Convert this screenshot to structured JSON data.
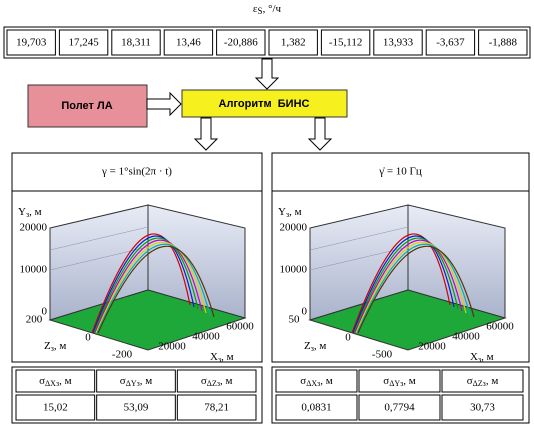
{
  "header": {
    "symbol": "ε",
    "subscript": "S",
    "unit": ", °/ч",
    "values": [
      "19,703",
      "17,245",
      "18,311",
      "13,46",
      "-20,886",
      "1,382",
      "-15,112",
      "13,933",
      "-3,637",
      "-1,888"
    ]
  },
  "blocks": {
    "flight": "Полет ЛА",
    "algorithm": "Алгоритм  БИНС"
  },
  "panels": [
    {
      "title": "γ = 1°sin(2π · t)",
      "plot": {
        "y_label": {
          "name": "Y",
          "sub": "з",
          "unit": ", м"
        },
        "z_label": {
          "name": "Z",
          "sub": "з",
          "unit": ", м"
        },
        "x_label": {
          "name": "X",
          "sub": "з",
          "unit": ", м"
        },
        "y_ticks": [
          20000,
          10000,
          0
        ],
        "z_ticks": [
          200,
          0,
          -200
        ],
        "x_ticks": [
          20000,
          40000,
          60000
        ]
      },
      "table": {
        "headers": [
          {
            "sym": "σ",
            "sub": "ΔXз",
            "unit": ", м"
          },
          {
            "sym": "σ",
            "sub": "ΔYз",
            "unit": ", м"
          },
          {
            "sym": "σ",
            "sub": "ΔZз",
            "unit": ", м"
          }
        ],
        "values": [
          "15,02",
          "53,09",
          "78,21"
        ]
      }
    },
    {
      "title": "γ̇ = 10 Гц",
      "plot": {
        "y_label": {
          "name": "Y",
          "sub": "з",
          "unit": ", м"
        },
        "z_label": {
          "name": "Z",
          "sub": "з",
          "unit": ", м"
        },
        "x_label": {
          "name": "X",
          "sub": "з",
          "unit": ", м"
        },
        "y_ticks": [
          20000,
          10000,
          0
        ],
        "z_ticks": [
          50,
          0,
          -500
        ],
        "x_ticks": [
          20000,
          40000,
          60000
        ]
      },
      "table": {
        "headers": [
          {
            "sym": "σ",
            "sub": "ΔXз",
            "unit": ", м"
          },
          {
            "sym": "σ",
            "sub": "ΔYз",
            "unit": ", м"
          },
          {
            "sym": "σ",
            "sub": "ΔZз",
            "unit": ", м"
          }
        ],
        "values": [
          "0,0831",
          "0,7794",
          "30,73"
        ]
      }
    }
  ]
}
